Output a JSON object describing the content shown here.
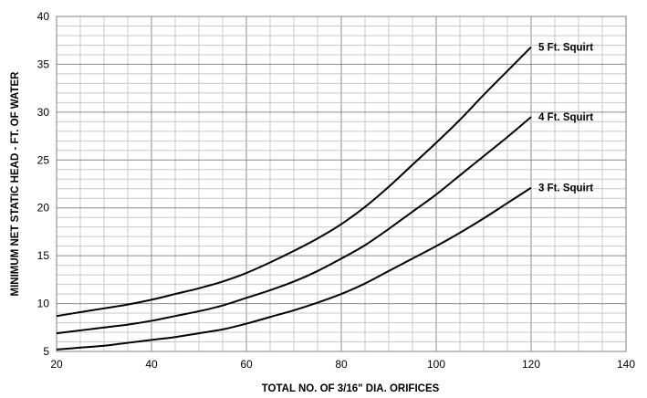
{
  "chart_data": {
    "type": "line",
    "xlabel": "TOTAL NO. OF 3/16\" DIA. ORIFICES",
    "ylabel": "MINIMUM NET STATIC HEAD - FT. OF WATER",
    "xlim": [
      20,
      140
    ],
    "ylim": [
      5,
      40
    ],
    "x_ticks": [
      "20",
      "40",
      "60",
      "80",
      "100",
      "120",
      "140"
    ],
    "y_ticks": [
      "5",
      "10",
      "15",
      "20",
      "25",
      "30",
      "35",
      "40"
    ],
    "x_minor_step": 5,
    "y_minor_step": 1,
    "grid": true,
    "series": [
      {
        "name": "5 Ft. Squirt",
        "x": [
          20,
          25,
          30,
          35,
          40,
          45,
          50,
          55,
          60,
          65,
          70,
          75,
          80,
          85,
          90,
          95,
          100,
          105,
          110,
          115,
          120
        ],
        "y": [
          8.7,
          9.1,
          9.5,
          9.9,
          10.4,
          11.0,
          11.6,
          12.3,
          13.2,
          14.3,
          15.5,
          16.8,
          18.3,
          20.1,
          22.2,
          24.5,
          26.8,
          29.2,
          31.8,
          34.3,
          36.8
        ]
      },
      {
        "name": "4 Ft. Squirt",
        "x": [
          20,
          25,
          30,
          35,
          40,
          45,
          50,
          55,
          60,
          65,
          70,
          75,
          80,
          85,
          90,
          95,
          100,
          105,
          110,
          115,
          120
        ],
        "y": [
          6.9,
          7.2,
          7.5,
          7.8,
          8.2,
          8.7,
          9.2,
          9.8,
          10.6,
          11.4,
          12.3,
          13.4,
          14.7,
          16.1,
          17.8,
          19.6,
          21.4,
          23.4,
          25.4,
          27.4,
          29.5
        ]
      },
      {
        "name": "3 Ft. Squirt",
        "x": [
          20,
          25,
          30,
          35,
          40,
          45,
          50,
          55,
          60,
          65,
          70,
          75,
          80,
          85,
          90,
          95,
          100,
          105,
          110,
          115,
          120
        ],
        "y": [
          5.2,
          5.4,
          5.6,
          5.9,
          6.2,
          6.5,
          6.9,
          7.3,
          7.9,
          8.6,
          9.3,
          10.1,
          11.0,
          12.1,
          13.4,
          14.7,
          16.0,
          17.4,
          18.9,
          20.5,
          22.1
        ]
      }
    ]
  }
}
